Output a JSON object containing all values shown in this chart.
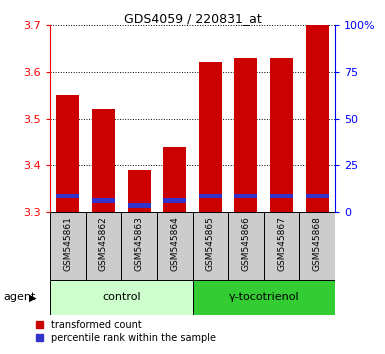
{
  "title": "GDS4059 / 220831_at",
  "samples": [
    "GSM545861",
    "GSM545862",
    "GSM545863",
    "GSM545864",
    "GSM545865",
    "GSM545866",
    "GSM545867",
    "GSM545868"
  ],
  "red_values": [
    3.55,
    3.52,
    3.39,
    3.44,
    3.62,
    3.63,
    3.63,
    3.7
  ],
  "blue_values": [
    3.335,
    3.325,
    3.315,
    3.325,
    3.335,
    3.335,
    3.335,
    3.335
  ],
  "baseline": 3.3,
  "ylim_left": [
    3.3,
    3.7
  ],
  "ylim_right": [
    0,
    100
  ],
  "yticks_left": [
    3.3,
    3.4,
    3.5,
    3.6,
    3.7
  ],
  "yticks_right": [
    0,
    25,
    50,
    75,
    100
  ],
  "ytick_labels_right": [
    "0",
    "25",
    "50",
    "75",
    "100%"
  ],
  "bar_width": 0.65,
  "red_color": "#cc0000",
  "blue_color": "#3333cc",
  "control_label": "control",
  "treatment_label": "γ-tocotrienol",
  "agent_label": "agent",
  "legend_red": "transformed count",
  "legend_blue": "percentile rank within the sample",
  "control_bg": "#ccffcc",
  "treatment_bg": "#33cc33",
  "sample_bg": "#cccccc",
  "n_control": 4,
  "n_treatment": 4
}
